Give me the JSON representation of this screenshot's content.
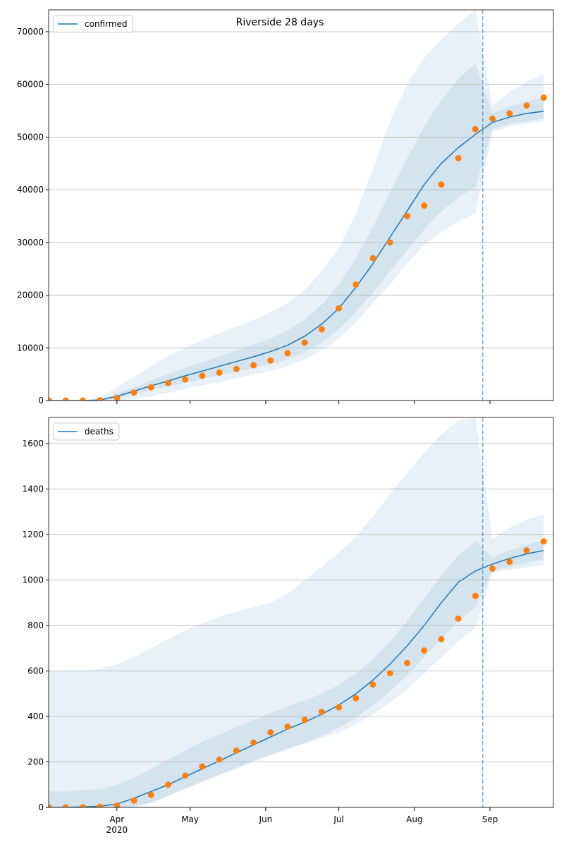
{
  "chart_data": [
    {
      "type": "line",
      "title": "Riverside 28 days",
      "x": [
        64,
        71,
        78,
        85,
        92,
        99,
        106,
        113,
        120,
        127,
        134,
        141,
        148,
        155,
        162,
        169,
        176,
        183,
        190,
        197,
        204,
        211,
        218,
        225,
        232,
        239,
        246,
        253,
        260,
        267
      ],
      "xlim": [
        64,
        271
      ],
      "ylim": [
        0,
        74150
      ],
      "yticks": [
        0,
        10000,
        20000,
        30000,
        40000,
        50000,
        60000,
        70000
      ],
      "grid": true,
      "legend": "upper left",
      "vline_x": 242,
      "series": [
        {
          "name": "confirmed",
          "color": "#1f77b4",
          "values": [
            0,
            0,
            0,
            100,
            800,
            1800,
            2800,
            3700,
            4700,
            5600,
            6500,
            7400,
            8300,
            9300,
            10500,
            12200,
            14500,
            17500,
            21500,
            26000,
            31000,
            36000,
            41000,
            45000,
            48000,
            50500,
            52800,
            53800,
            54500,
            54900
          ]
        }
      ],
      "observed": {
        "color": "#ff7f0e",
        "values": [
          0,
          0,
          0,
          50,
          500,
          1500,
          2500,
          3300,
          4000,
          4700,
          5300,
          6000,
          6700,
          7600,
          9000,
          11000,
          13500,
          17500,
          22000,
          27000,
          30000,
          35000,
          37000,
          41000,
          46000,
          51500,
          53500,
          54500,
          56000,
          57500
        ]
      },
      "band_color": "#1f77b4",
      "bands": [
        {
          "upper": [
            0,
            0,
            0,
            600,
            2500,
            4500,
            6500,
            8500,
            10000,
            11500,
            12800,
            14000,
            15300,
            16800,
            18500,
            21000,
            24500,
            29000,
            35500,
            44000,
            53000,
            60000,
            65000,
            68500,
            71500,
            74150,
            56000,
            58500,
            60500,
            62000
          ],
          "lower": [
            0,
            0,
            0,
            0,
            0,
            300,
            800,
            1500,
            2200,
            2900,
            3500,
            4200,
            4900,
            5600,
            6500,
            7800,
            9500,
            11800,
            14800,
            18500,
            22000,
            26000,
            29500,
            32000,
            34000,
            35500,
            51000,
            52000,
            52500,
            53000
          ]
        },
        {
          "upper": [
            0,
            0,
            0,
            200,
            1300,
            2500,
            3800,
            5000,
            6200,
            7300,
            8400,
            9500,
            10600,
            11800,
            13300,
            15400,
            18200,
            22000,
            27000,
            33000,
            39500,
            46000,
            52000,
            57000,
            61000,
            64000,
            54500,
            55800,
            56800,
            57500
          ],
          "lower": [
            0,
            0,
            0,
            20,
            400,
            1200,
            2000,
            2700,
            3400,
            4100,
            4800,
            5500,
            6200,
            6900,
            7800,
            9200,
            11000,
            13500,
            16800,
            20500,
            24500,
            28500,
            32500,
            36000,
            38500,
            40500,
            51500,
            52500,
            53000,
            53500
          ]
        }
      ]
    },
    {
      "type": "line",
      "x": [
        64,
        71,
        78,
        85,
        92,
        99,
        106,
        113,
        120,
        127,
        134,
        141,
        148,
        155,
        162,
        169,
        176,
        183,
        190,
        197,
        204,
        211,
        218,
        225,
        232,
        239,
        246,
        253,
        260,
        267
      ],
      "xlim": [
        64,
        271
      ],
      "xticks": [
        {
          "value": 92,
          "label": "Apr\n2020"
        },
        {
          "value": 122,
          "label": "May"
        },
        {
          "value": 153,
          "label": "Jun"
        },
        {
          "value": 183,
          "label": "Jul"
        },
        {
          "value": 214,
          "label": "Aug"
        },
        {
          "value": 245,
          "label": "Sep"
        }
      ],
      "ylim": [
        0,
        1715
      ],
      "yticks": [
        0,
        200,
        400,
        600,
        800,
        1000,
        1200,
        1400,
        1600
      ],
      "grid": true,
      "legend": "upper left",
      "vline_x": 242,
      "series": [
        {
          "name": "deaths",
          "color": "#1f77b4",
          "values": [
            0,
            0,
            2,
            5,
            15,
            40,
            70,
            100,
            135,
            170,
            205,
            240,
            275,
            310,
            345,
            375,
            410,
            450,
            500,
            560,
            630,
            710,
            800,
            900,
            990,
            1040,
            1070,
            1095,
            1115,
            1130
          ]
        }
      ],
      "observed": {
        "color": "#ff7f0e",
        "values": [
          0,
          0,
          0,
          3,
          8,
          30,
          55,
          100,
          140,
          180,
          210,
          250,
          285,
          330,
          355,
          385,
          420,
          440,
          480,
          540,
          590,
          635,
          690,
          740,
          830,
          930,
          1050,
          1080,
          1130,
          1170
        ]
      },
      "band_color": "#1f77b4",
      "bands": [
        {
          "upper": [
            600,
            600,
            600,
            610,
            630,
            660,
            700,
            740,
            780,
            810,
            840,
            860,
            880,
            900,
            940,
            1000,
            1060,
            1120,
            1190,
            1280,
            1380,
            1470,
            1560,
            1640,
            1700,
            1715,
            1180,
            1230,
            1265,
            1290
          ],
          "lower": [
            0,
            0,
            0,
            0,
            0,
            0,
            20,
            50,
            85,
            115,
            145,
            175,
            205,
            230,
            255,
            280,
            305,
            330,
            365,
            410,
            460,
            520,
            590,
            660,
            730,
            790,
            1030,
            1045,
            1055,
            1065
          ]
        },
        {
          "upper": [
            70,
            70,
            75,
            80,
            100,
            130,
            170,
            210,
            250,
            290,
            320,
            355,
            385,
            415,
            445,
            470,
            500,
            540,
            590,
            650,
            730,
            820,
            920,
            1020,
            1110,
            1170,
            1100,
            1130,
            1155,
            1175
          ],
          "lower": [
            0,
            0,
            0,
            0,
            0,
            5,
            20,
            50,
            80,
            110,
            140,
            170,
            200,
            230,
            260,
            285,
            315,
            350,
            395,
            450,
            510,
            580,
            660,
            740,
            820,
            880,
            1040,
            1060,
            1075,
            1090
          ]
        }
      ]
    }
  ]
}
